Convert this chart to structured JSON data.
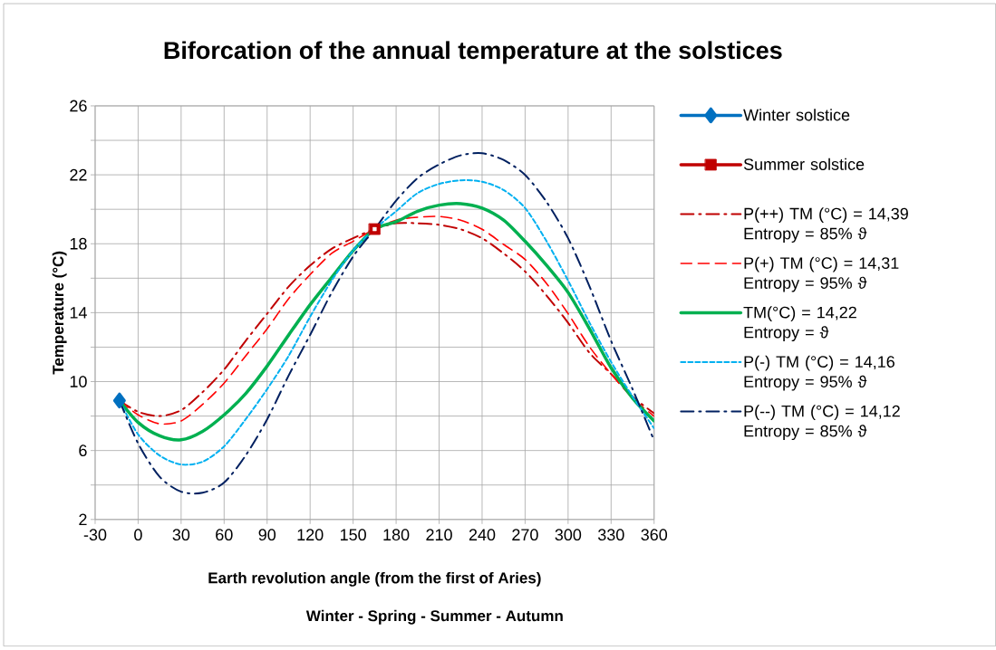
{
  "chart_data": {
    "type": "line",
    "title": "Biforcation of the annual temperature at the solstices",
    "xlabel": "Earth revolution angle (from the first of Aries)",
    "ylabel": "Temperature (°C)",
    "annotations": [
      "Winter - Spring - Summer - Autumn"
    ],
    "xlim": [
      -30,
      360
    ],
    "xticks": [
      -30,
      0,
      30,
      60,
      90,
      120,
      150,
      180,
      210,
      240,
      270,
      300,
      330,
      360
    ],
    "ylim": [
      2,
      26
    ],
    "yticks": [
      2,
      {
        "value": 4,
        "label": null
      },
      6,
      {
        "value": 8,
        "label": null
      },
      10,
      {
        "value": 12,
        "label": null
      },
      14,
      {
        "value": 16,
        "label": null
      },
      18,
      {
        "value": 20,
        "label": null
      },
      22,
      {
        "value": 24,
        "label": null
      },
      26
    ],
    "grid": true,
    "legend": "right",
    "marker": "none",
    "series": [
      {
        "name": "Winter solstice",
        "color": "#0070c0",
        "x": [
          -13
        ],
        "values": [
          8.9
        ],
        "marker": "diamond",
        "line_style": "solid"
      },
      {
        "name": "Summer solstice",
        "color": "#c00000",
        "x": [
          165
        ],
        "values": [
          18.85
        ],
        "marker": "square",
        "line_style": "solid"
      },
      {
        "name": "P(++)   TM (°C) =  14,39 Entropy = 85% ϑ",
        "color": "#c00000",
        "line_style": "dashdot",
        "x": [
          -13,
          0,
          15,
          30,
          45,
          60,
          75,
          90,
          105,
          120,
          135,
          150,
          165,
          180,
          195,
          210,
          225,
          240,
          255,
          270,
          285,
          300,
          315,
          330,
          345,
          360
        ],
        "values": [
          8.9,
          8.25,
          8.0,
          8.34,
          9.39,
          10.7,
          12.36,
          13.94,
          15.51,
          16.74,
          17.7,
          18.32,
          18.85,
          19.19,
          19.19,
          19.1,
          18.84,
          18.32,
          17.44,
          16.39,
          14.99,
          13.41,
          11.66,
          10.44,
          9.13,
          8.16
        ]
      },
      {
        "name": "P(+)   TM (°C) =  14,31 Entropy = 95% ϑ",
        "color": "#ff0000",
        "line_style": "dashed",
        "x": [
          -13,
          0,
          15,
          30,
          45,
          60,
          75,
          90,
          105,
          120,
          135,
          150,
          165,
          180,
          195,
          210,
          225,
          240,
          255,
          270,
          285,
          300,
          315,
          330,
          345,
          360
        ],
        "values": [
          8.9,
          8.07,
          7.55,
          7.72,
          8.68,
          9.91,
          11.49,
          13.06,
          14.81,
          16.21,
          17.44,
          18.14,
          18.85,
          19.37,
          19.54,
          19.58,
          19.37,
          18.84,
          17.96,
          17.09,
          15.69,
          13.94,
          12.01,
          10.44,
          9.04,
          7.99
        ]
      },
      {
        "name": "TM(°C) = 14,22 Entropy = ϑ",
        "color": "#00b050",
        "line_style": "solid",
        "x": [
          -13,
          0,
          15,
          30,
          45,
          60,
          75,
          90,
          105,
          120,
          135,
          150,
          165,
          180,
          195,
          210,
          225,
          240,
          255,
          270,
          285,
          300,
          315,
          330,
          345,
          360
        ],
        "values": [
          8.9,
          7.63,
          6.85,
          6.62,
          7.11,
          8.07,
          9.3,
          10.9,
          12.7,
          14.46,
          16.04,
          17.6,
          18.85,
          19.28,
          19.89,
          20.24,
          20.33,
          20.07,
          19.37,
          18.14,
          16.74,
          15.17,
          13.06,
          10.8,
          9.04,
          7.72
        ]
      },
      {
        "name": "P(-)   TM (°C) =  14,16 Entropy = 95% ϑ",
        "color": "#00b0f0",
        "line_style": "dotted",
        "x": [
          -13,
          0,
          15,
          30,
          45,
          60,
          75,
          90,
          105,
          120,
          135,
          150,
          165,
          180,
          195,
          210,
          225,
          240,
          255,
          270,
          285,
          300,
          315,
          330,
          345,
          360
        ],
        "values": [
          8.9,
          6.93,
          5.71,
          5.19,
          5.35,
          6.24,
          7.81,
          9.56,
          11.49,
          13.76,
          15.86,
          17.61,
          18.85,
          19.89,
          20.94,
          21.47,
          21.68,
          21.6,
          21.12,
          20.07,
          18.14,
          15.86,
          13.41,
          11.14,
          9.13,
          7.29
        ]
      },
      {
        "name": "P(--)   TM (°C) =  14,12 Entropy = 85% ϑ",
        "color": "#002060",
        "line_style": "dashdot",
        "x": [
          -13,
          0,
          15,
          30,
          45,
          60,
          75,
          90,
          105,
          120,
          135,
          150,
          165,
          180,
          195,
          210,
          225,
          240,
          255,
          270,
          285,
          300,
          315,
          330,
          345,
          360
        ],
        "values": [
          8.9,
          6.41,
          4.48,
          3.61,
          3.55,
          4.14,
          5.71,
          7.81,
          10.35,
          12.71,
          15.16,
          17.26,
          18.85,
          20.5,
          21.81,
          22.6,
          23.13,
          23.25,
          22.86,
          21.99,
          20.42,
          18.32,
          15.51,
          12.36,
          9.56,
          6.58
        ]
      }
    ]
  }
}
